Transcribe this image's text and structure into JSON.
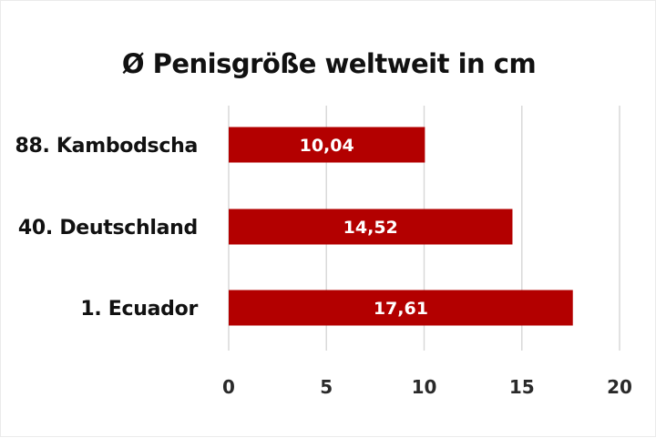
{
  "chart_data": {
    "type": "bar",
    "orientation": "horizontal",
    "title": "Ø Penisgröße weltweit in cm",
    "xlabel": "",
    "ylabel": "",
    "categories": [
      "88. Kambodscha",
      "40. Deutschland",
      "1. Ecuador"
    ],
    "values": [
      10.04,
      14.52,
      17.61
    ],
    "value_labels": [
      "10,04",
      "14,52",
      "17,61"
    ],
    "xlim": [
      0,
      20
    ],
    "xticks": [
      0,
      5,
      10,
      15,
      20
    ],
    "xtick_labels": [
      "0",
      "5",
      "10",
      "15",
      "20"
    ],
    "grid": "vertical",
    "legend": "none",
    "bar_color": "#b30000"
  }
}
